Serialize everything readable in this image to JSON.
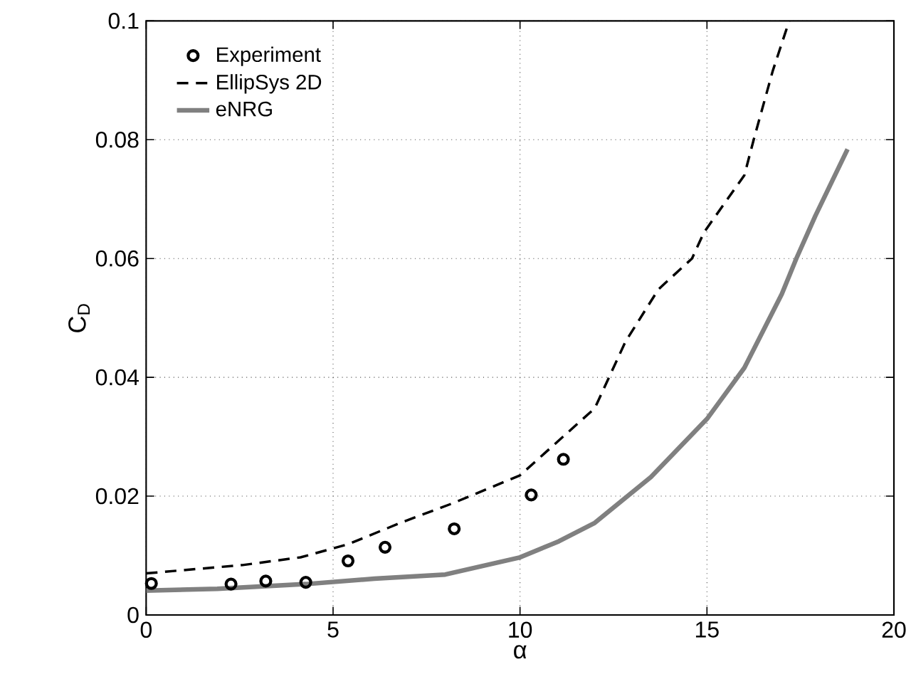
{
  "chart_data": {
    "type": "line",
    "xlabel": "α",
    "ylabel": "C$_{D}$",
    "xlim": [
      0,
      20
    ],
    "ylim": [
      0,
      0.1
    ],
    "xticks": [
      0,
      5,
      10,
      15,
      20
    ],
    "yticks": [
      0,
      0.02,
      0.04,
      0.06,
      0.08,
      0.1
    ],
    "grid": true,
    "legend": "top left",
    "series": [
      {
        "name": "Experiment",
        "type": "scatter",
        "marker": "circle",
        "color": "#000000",
        "x": [
          0.14,
          2.27,
          3.2,
          4.27,
          5.4,
          6.39,
          8.24,
          10.3,
          11.16
        ],
        "values": [
          0.0053,
          0.0052,
          0.0057,
          0.0055,
          0.0091,
          0.0114,
          0.0145,
          0.0202,
          0.0262
        ]
      },
      {
        "name": "EllipSys 2D",
        "line_style": "dashed",
        "color": "#000000",
        "x": [
          0,
          2.58,
          4.13,
          5.4,
          6.8,
          8.2,
          10,
          12,
          12.82,
          13.7,
          14.6,
          14.92,
          16,
          16.25,
          16.76,
          17.2
        ],
        "values": [
          0.007,
          0.0084,
          0.0097,
          0.0119,
          0.0155,
          0.0188,
          0.0235,
          0.0348,
          0.046,
          0.0548,
          0.06,
          0.0644,
          0.074,
          0.08,
          0.0916,
          0.1
        ]
      },
      {
        "name": "eNRG",
        "line_style": "solid",
        "color": "#808080",
        "x": [
          0,
          1.9,
          4.27,
          6.1,
          8,
          10,
          11.04,
          12,
          13.5,
          15,
          16,
          17,
          17.39,
          17.9,
          18.76
        ],
        "values": [
          0.0041,
          0.0044,
          0.0052,
          0.0061,
          0.0068,
          0.0097,
          0.0124,
          0.0155,
          0.0232,
          0.033,
          0.0416,
          0.054,
          0.06,
          0.0672,
          0.0784
        ]
      }
    ]
  }
}
